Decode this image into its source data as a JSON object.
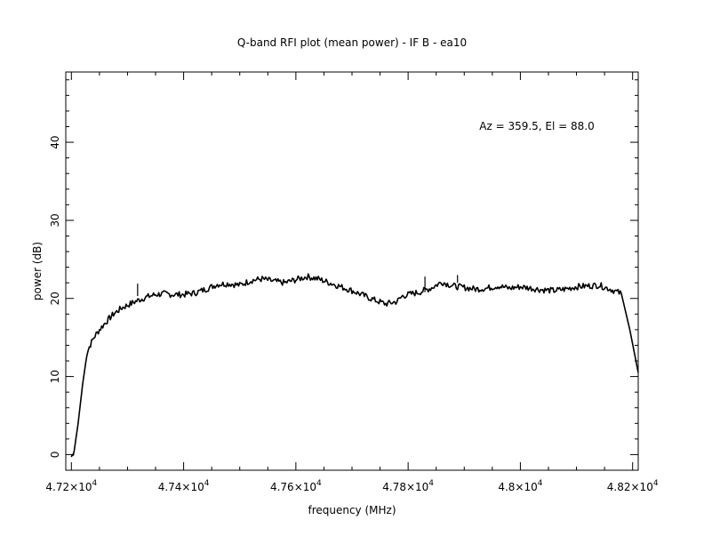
{
  "chart_data": {
    "type": "line",
    "title": "Q-band RFI plot (mean power) - IF B - ea10",
    "xlabel": "frequency (MHz)",
    "ylabel": "power (dB)",
    "annotation": "Az = 359.5, El = 88.0",
    "xlim": [
      47190,
      48210
    ],
    "ylim": [
      -2,
      49
    ],
    "x_ticks": [
      {
        "value": 47200,
        "mantissa": "4.72",
        "exp": "4"
      },
      {
        "value": 47400,
        "mantissa": "4.74",
        "exp": "4"
      },
      {
        "value": 47600,
        "mantissa": "4.76",
        "exp": "4"
      },
      {
        "value": 47800,
        "mantissa": "4.78",
        "exp": "4"
      },
      {
        "value": 48000,
        "mantissa": "4.8",
        "exp": "4"
      },
      {
        "value": 48200,
        "mantissa": "4.82",
        "exp": "4"
      }
    ],
    "y_ticks": [
      0,
      10,
      20,
      30,
      40
    ],
    "grid": false,
    "line_color": "#000000",
    "series": [
      {
        "x": [
          47200,
          47205,
          47212,
          47220,
          47228,
          47232,
          47240,
          47250,
          47262,
          47275,
          47290,
          47305,
          47320,
          47335,
          47350,
          47365,
          47380,
          47400,
          47420,
          47440,
          47460,
          47480,
          47500,
          47520,
          47540,
          47560,
          47580,
          47600,
          47620,
          47640,
          47660,
          47680,
          47700,
          47720,
          47740,
          47760,
          47780,
          47790,
          47800,
          47820,
          47840,
          47860,
          47880,
          47900,
          47920,
          47940,
          47960,
          47980,
          48000,
          48020,
          48040,
          48060,
          48080,
          48100,
          48120,
          48140,
          48160,
          48170,
          48180,
          48195,
          48210
        ],
        "y": [
          -0.3,
          0.5,
          4,
          9,
          13,
          13.8,
          15,
          16,
          17,
          18,
          18.8,
          19.3,
          19.8,
          20.2,
          20.5,
          20.6,
          20.5,
          20.5,
          20.7,
          21.2,
          21.8,
          21.9,
          21.7,
          22.3,
          22.5,
          22.2,
          22.0,
          22.4,
          22.8,
          22.5,
          22.0,
          21.5,
          21.0,
          20.4,
          19.8,
          19.3,
          19.6,
          20.3,
          20.5,
          20.8,
          21.3,
          22.1,
          21.6,
          21.4,
          21.2,
          21.3,
          21.6,
          21.3,
          21.5,
          21.3,
          21.1,
          21.0,
          21.2,
          21.5,
          21.6,
          21.7,
          21.2,
          20.9,
          20.6,
          16,
          10.5
        ]
      }
    ]
  }
}
